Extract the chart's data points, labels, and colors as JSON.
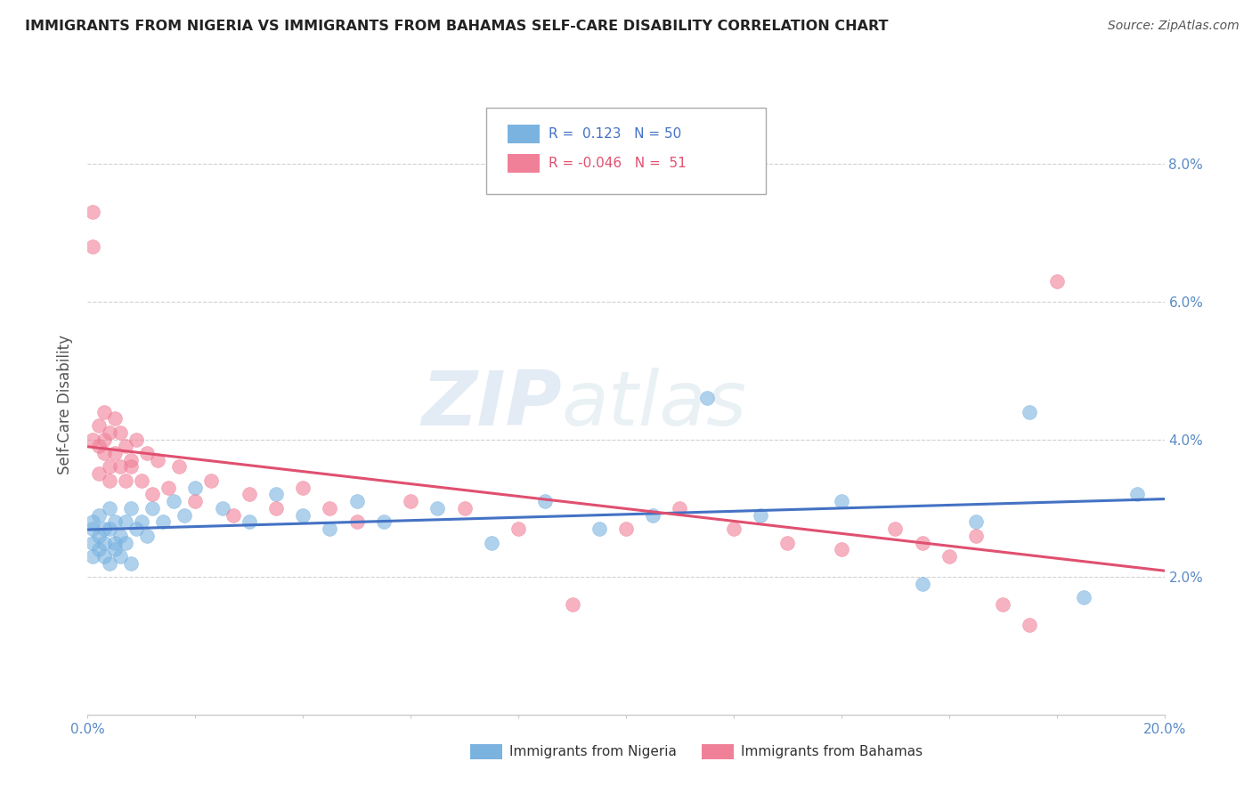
{
  "title": "IMMIGRANTS FROM NIGERIA VS IMMIGRANTS FROM BAHAMAS SELF-CARE DISABILITY CORRELATION CHART",
  "source": "Source: ZipAtlas.com",
  "ylabel": "Self-Care Disability",
  "xlim": [
    0.0,
    0.2
  ],
  "ylim": [
    0.0,
    0.09
  ],
  "color_nigeria": "#7ab3e0",
  "color_bahamas": "#f08098",
  "color_nigeria_line": "#4472c4",
  "color_bahamas_line": "#e05070",
  "watermark_zip": "ZIP",
  "watermark_atlas": "atlas",
  "nigeria_x": [
    0.001,
    0.001,
    0.001,
    0.001,
    0.002,
    0.002,
    0.002,
    0.003,
    0.003,
    0.003,
    0.004,
    0.004,
    0.004,
    0.005,
    0.005,
    0.005,
    0.006,
    0.006,
    0.007,
    0.007,
    0.008,
    0.008,
    0.009,
    0.01,
    0.011,
    0.012,
    0.014,
    0.016,
    0.018,
    0.02,
    0.025,
    0.03,
    0.035,
    0.04,
    0.045,
    0.05,
    0.055,
    0.065,
    0.075,
    0.085,
    0.095,
    0.105,
    0.115,
    0.125,
    0.14,
    0.155,
    0.165,
    0.175,
    0.185,
    0.195
  ],
  "nigeria_y": [
    0.027,
    0.025,
    0.028,
    0.023,
    0.026,
    0.024,
    0.029,
    0.027,
    0.023,
    0.025,
    0.03,
    0.022,
    0.027,
    0.025,
    0.028,
    0.024,
    0.026,
    0.023,
    0.028,
    0.025,
    0.03,
    0.022,
    0.027,
    0.028,
    0.026,
    0.03,
    0.028,
    0.031,
    0.029,
    0.033,
    0.03,
    0.028,
    0.032,
    0.029,
    0.027,
    0.031,
    0.028,
    0.03,
    0.025,
    0.031,
    0.027,
    0.029,
    0.046,
    0.029,
    0.031,
    0.019,
    0.028,
    0.044,
    0.017,
    0.032
  ],
  "bahamas_x": [
    0.001,
    0.001,
    0.001,
    0.002,
    0.002,
    0.002,
    0.003,
    0.003,
    0.003,
    0.004,
    0.004,
    0.004,
    0.005,
    0.005,
    0.006,
    0.006,
    0.007,
    0.007,
    0.008,
    0.008,
    0.009,
    0.01,
    0.011,
    0.012,
    0.013,
    0.015,
    0.017,
    0.02,
    0.023,
    0.027,
    0.03,
    0.035,
    0.04,
    0.045,
    0.05,
    0.06,
    0.07,
    0.08,
    0.09,
    0.1,
    0.11,
    0.12,
    0.13,
    0.14,
    0.15,
    0.155,
    0.16,
    0.165,
    0.17,
    0.175,
    0.18
  ],
  "bahamas_y": [
    0.073,
    0.068,
    0.04,
    0.035,
    0.042,
    0.039,
    0.044,
    0.04,
    0.038,
    0.041,
    0.036,
    0.034,
    0.043,
    0.038,
    0.041,
    0.036,
    0.039,
    0.034,
    0.037,
    0.036,
    0.04,
    0.034,
    0.038,
    0.032,
    0.037,
    0.033,
    0.036,
    0.031,
    0.034,
    0.029,
    0.032,
    0.03,
    0.033,
    0.03,
    0.028,
    0.031,
    0.03,
    0.027,
    0.016,
    0.027,
    0.03,
    0.027,
    0.025,
    0.024,
    0.027,
    0.025,
    0.023,
    0.026,
    0.016,
    0.013,
    0.063
  ]
}
